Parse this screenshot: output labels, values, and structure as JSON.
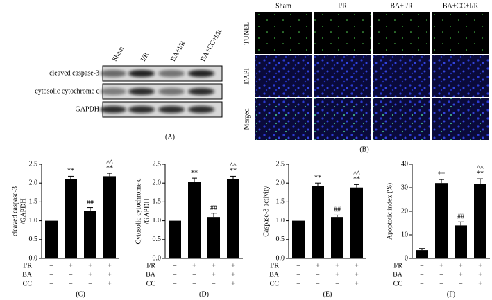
{
  "blot": {
    "lanes": [
      "Sham",
      "I/R",
      "BA+I/R",
      "BA+CC+I/R"
    ],
    "rows": [
      "cleaved caspase-3",
      "cytosolic cytochrome c",
      "GAPDH"
    ],
    "label": "(A)"
  },
  "microscopy": {
    "columns": [
      "Sham",
      "I/R",
      "BA+I/R",
      "BA+CC+I/R"
    ],
    "rows": [
      "TUNEL",
      "DAPI",
      "Merged"
    ],
    "label": "(B)"
  },
  "chart_data": [
    {
      "type": "bar",
      "panel": "(C)",
      "y_label": [
        "cleaved caspase-3",
        "/GAPDH"
      ],
      "color": "#000000",
      "values": [
        1.0,
        2.1,
        1.25,
        2.18
      ],
      "errors": [
        0,
        0.08,
        0.1,
        0.08
      ],
      "annotations": [
        [],
        [
          "**"
        ],
        [
          "##"
        ],
        [
          "^^",
          "**"
        ]
      ],
      "ylim": [
        0,
        2.5
      ],
      "yticks": [
        {
          "value": 0,
          "label": "0.0"
        },
        0.5,
        {
          "value": 1,
          "label": "1.0"
        },
        1.5,
        {
          "value": 2,
          "label": "2.0"
        },
        2.5
      ],
      "conditions": [
        {
          "name": "I/R",
          "signs": [
            "−",
            "+",
            "+",
            "+"
          ]
        },
        {
          "name": "BA",
          "signs": [
            "−",
            "−",
            "+",
            "+"
          ]
        },
        {
          "name": "CC",
          "signs": [
            "−",
            "−",
            "−",
            "+"
          ]
        }
      ]
    },
    {
      "type": "bar",
      "panel": "(D)",
      "y_label": [
        "Cytosolic cytochrome c",
        "/GAPDH"
      ],
      "color": "#000000",
      "values": [
        1.0,
        2.03,
        1.1,
        2.1
      ],
      "errors": [
        0,
        0.1,
        0.1,
        0.08
      ],
      "annotations": [
        [],
        [
          "**"
        ],
        [
          "##"
        ],
        [
          "^^",
          "**"
        ]
      ],
      "ylim": [
        0,
        2.5
      ],
      "yticks": [
        {
          "value": 0,
          "label": "0.0"
        },
        0.5,
        {
          "value": 1,
          "label": "1.0"
        },
        1.5,
        {
          "value": 2,
          "label": "2.0"
        },
        2.5
      ],
      "conditions": [
        {
          "name": "I/R",
          "signs": [
            "−",
            "+",
            "+",
            "+"
          ]
        },
        {
          "name": "BA",
          "signs": [
            "−",
            "−",
            "+",
            "+"
          ]
        },
        {
          "name": "CC",
          "signs": [
            "−",
            "−",
            "−",
            "+"
          ]
        }
      ]
    },
    {
      "type": "bar",
      "panel": "(E)",
      "y_label": [
        "Caspase-3 activity"
      ],
      "color": "#000000",
      "values": [
        1.0,
        1.92,
        1.1,
        1.88
      ],
      "errors": [
        0,
        0.08,
        0.05,
        0.08
      ],
      "annotations": [
        [],
        [
          "**"
        ],
        [
          "##"
        ],
        [
          "^^",
          "**"
        ]
      ],
      "ylim": [
        0,
        2.5
      ],
      "yticks": [
        {
          "value": 0,
          "label": "0.0"
        },
        0.5,
        {
          "value": 1,
          "label": "1.0"
        },
        1.5,
        {
          "value": 2,
          "label": "2.0"
        },
        2.5
      ],
      "conditions": [
        {
          "name": "I/R",
          "signs": [
            "−",
            "+",
            "+",
            "+"
          ]
        },
        {
          "name": "BA",
          "signs": [
            "−",
            "−",
            "+",
            "+"
          ]
        },
        {
          "name": "CC",
          "signs": [
            "−",
            "−",
            "−",
            "+"
          ]
        }
      ]
    },
    {
      "type": "bar",
      "panel": "(F)",
      "y_label": [
        "Apoptotic index (%)"
      ],
      "color": "#000000",
      "values": [
        3.5,
        32,
        14,
        31.5
      ],
      "errors": [
        0.7,
        1.5,
        1.5,
        2.3
      ],
      "annotations": [
        [],
        [
          "**"
        ],
        [
          "##"
        ],
        [
          "^^",
          "**"
        ]
      ],
      "ylim": [
        0,
        40
      ],
      "yticks": [
        0,
        10,
        20,
        30,
        40
      ],
      "conditions": [
        {
          "name": "I/R",
          "signs": [
            "−",
            "+",
            "+",
            "+"
          ]
        },
        {
          "name": "BA",
          "signs": [
            "−",
            "−",
            "+",
            "+"
          ]
        },
        {
          "name": "CC",
          "signs": [
            "−",
            "−",
            "−",
            "+"
          ]
        }
      ]
    }
  ]
}
